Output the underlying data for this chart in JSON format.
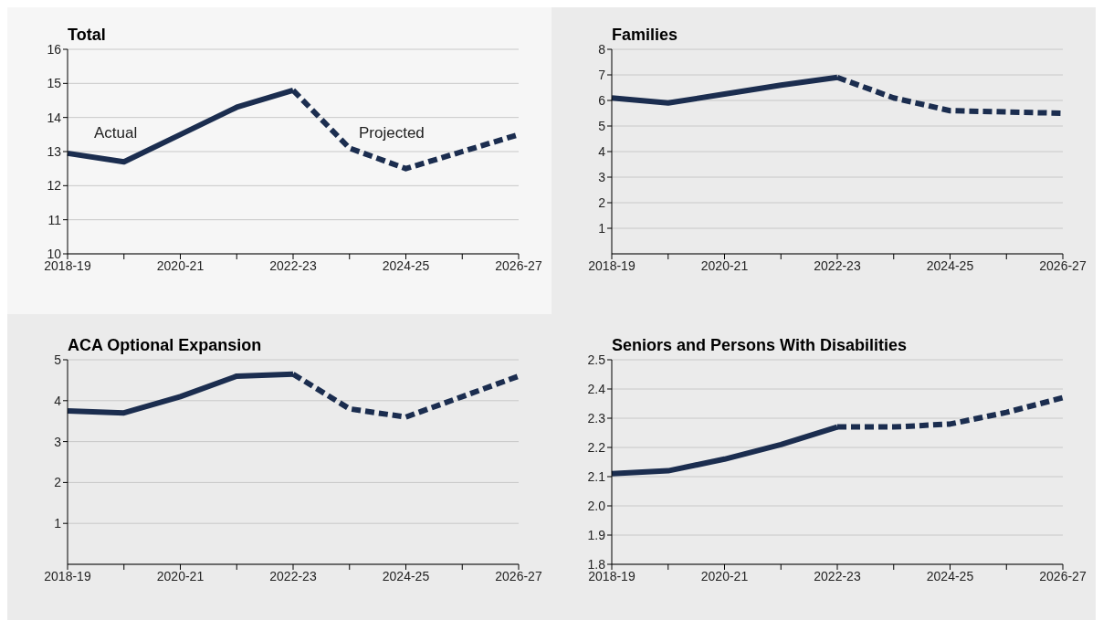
{
  "chart_data": [
    {
      "type": "line",
      "title": "Total",
      "categories": [
        "2018-19",
        null,
        "2020-21",
        null,
        "2022-23",
        null,
        "2024-25",
        null,
        "2026-27"
      ],
      "ylim": [
        10,
        16
      ],
      "yticks": [
        10,
        11,
        12,
        13,
        14,
        15,
        16
      ],
      "grid": "y",
      "marker": "none",
      "annotations": [
        "Actual",
        "Projected"
      ],
      "series": [
        {
          "color": "#1b2d4f",
          "line_style": "solid",
          "values": [
            12.95,
            12.7,
            13.5,
            14.3,
            14.8,
            null,
            null,
            null,
            null
          ]
        },
        {
          "color": "#1b2d4f",
          "line_style": "dashed",
          "values": [
            null,
            null,
            null,
            null,
            14.8,
            13.1,
            12.5,
            13.0,
            13.5
          ]
        }
      ]
    },
    {
      "type": "line",
      "title": "Families",
      "categories": [
        "2018-19",
        null,
        "2020-21",
        null,
        "2022-23",
        null,
        "2024-25",
        null,
        "2026-27"
      ],
      "ylim": [
        0,
        8
      ],
      "yticks": [
        1,
        2,
        3,
        4,
        5,
        6,
        7,
        8
      ],
      "grid": "y",
      "marker": "none",
      "series": [
        {
          "color": "#1b2d4f",
          "line_style": "solid",
          "values": [
            6.1,
            5.9,
            6.25,
            6.6,
            6.9,
            null,
            null,
            null,
            null
          ]
        },
        {
          "color": "#1b2d4f",
          "line_style": "dashed",
          "values": [
            null,
            null,
            null,
            null,
            6.9,
            6.1,
            5.6,
            5.55,
            5.5
          ]
        }
      ]
    },
    {
      "type": "line",
      "title": "ACA Optional Expansion",
      "categories": [
        "2018-19",
        null,
        "2020-21",
        null,
        "2022-23",
        null,
        "2024-25",
        null,
        "2026-27"
      ],
      "ylim": [
        0,
        5
      ],
      "yticks": [
        1,
        2,
        3,
        4,
        5
      ],
      "grid": "y",
      "marker": "none",
      "series": [
        {
          "color": "#1b2d4f",
          "line_style": "solid",
          "values": [
            3.75,
            3.7,
            4.1,
            4.6,
            4.65,
            null,
            null,
            null,
            null
          ]
        },
        {
          "color": "#1b2d4f",
          "line_style": "dashed",
          "values": [
            null,
            null,
            null,
            null,
            4.65,
            3.8,
            3.6,
            4.1,
            4.6
          ]
        }
      ]
    },
    {
      "type": "line",
      "title": "Seniors and Persons With Disabilities",
      "categories": [
        "2018-19",
        null,
        "2020-21",
        null,
        "2022-23",
        null,
        "2024-25",
        null,
        "2026-27"
      ],
      "ylim": [
        1.8,
        2.5
      ],
      "yticks": [
        {
          "value": 1.8,
          "label": "1.8"
        },
        {
          "value": 1.9,
          "label": "1.9"
        },
        {
          "value": 2,
          "label": "2.0"
        },
        {
          "value": 2.1,
          "label": "2.1"
        },
        {
          "value": 2.2,
          "label": "2.2"
        },
        {
          "value": 2.3,
          "label": "2.3"
        },
        {
          "value": 2.4,
          "label": "2.4"
        },
        {
          "value": 2.5,
          "label": "2.5"
        }
      ],
      "grid": "y",
      "marker": "none",
      "series": [
        {
          "color": "#1b2d4f",
          "line_style": "solid",
          "values": [
            2.11,
            2.12,
            2.16,
            2.21,
            2.27,
            null,
            null,
            null,
            null
          ]
        },
        {
          "color": "#1b2d4f",
          "line_style": "dashed",
          "values": [
            null,
            null,
            null,
            null,
            2.27,
            2.27,
            2.28,
            2.32,
            2.37
          ]
        }
      ]
    }
  ]
}
